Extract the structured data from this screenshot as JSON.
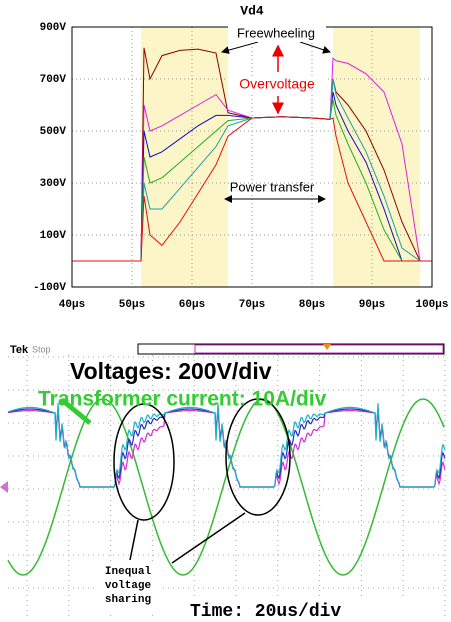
{
  "chart_data": {
    "type": "line",
    "title": "Vd4",
    "x": [
      40,
      51.5,
      52,
      53,
      55,
      58,
      61,
      64,
      66,
      70,
      75,
      80,
      83,
      83.5,
      84,
      86,
      89,
      92,
      95,
      98,
      100
    ],
    "series": [
      {
        "color": "#8b0000",
        "values": [
          0,
          0,
          820,
          700,
          790,
          810,
          815,
          800,
          570,
          550,
          555,
          550,
          545,
          700,
          650,
          600,
          500,
          350,
          150,
          0,
          0
        ]
      },
      {
        "color": "#e020e0",
        "values": [
          0,
          0,
          600,
          500,
          520,
          560,
          600,
          640,
          580,
          550,
          555,
          550,
          545,
          780,
          770,
          760,
          720,
          650,
          450,
          0,
          0
        ]
      },
      {
        "color": "#1010c0",
        "values": [
          0,
          0,
          500,
          400,
          420,
          470,
          520,
          560,
          560,
          550,
          555,
          550,
          545,
          650,
          600,
          500,
          380,
          200,
          0,
          0,
          0
        ]
      },
      {
        "color": "#22b022",
        "values": [
          0,
          0,
          400,
          300,
          320,
          380,
          440,
          500,
          540,
          550,
          555,
          550,
          545,
          620,
          560,
          450,
          300,
          120,
          0,
          0,
          0
        ]
      },
      {
        "color": "#20a0a0",
        "values": [
          0,
          0,
          300,
          200,
          200,
          280,
          360,
          440,
          520,
          550,
          555,
          550,
          545,
          700,
          640,
          550,
          420,
          250,
          50,
          0,
          0
        ]
      },
      {
        "color": "#e01010",
        "values": [
          0,
          0,
          250,
          100,
          60,
          150,
          260,
          370,
          480,
          550,
          555,
          550,
          545,
          550,
          480,
          300,
          150,
          0,
          0,
          0,
          0
        ]
      }
    ],
    "spans": [
      [
        51.5,
        66
      ],
      [
        83.5,
        98
      ]
    ],
    "span_color": "#fbf5c7",
    "xlim": [
      40,
      100
    ],
    "xticks": [
      {
        "value": 40,
        "label": "40µs"
      },
      {
        "value": 50,
        "label": "50µs"
      },
      {
        "value": 60,
        "label": "60µs"
      },
      {
        "value": 70,
        "label": "70µs"
      },
      {
        "value": 80,
        "label": "80µs"
      },
      {
        "value": 90,
        "label": "90µs"
      },
      {
        "value": 100,
        "label": "100µs"
      }
    ],
    "ylim": [
      -100,
      900
    ],
    "yticks": [
      {
        "value": -100,
        "label": "-100V"
      },
      {
        "value": 100,
        "label": "100V"
      },
      {
        "value": 300,
        "label": "300V"
      },
      {
        "value": 500,
        "label": "500V"
      },
      {
        "value": 700,
        "label": "700V"
      },
      {
        "value": 900,
        "label": "900V"
      }
    ],
    "grid": true,
    "annotations": [
      "Freewheeling",
      "Overvoltage",
      "Power transfer"
    ]
  },
  "scope": {
    "brand": "Tek",
    "status": "Stop",
    "voltage_scale": "Voltages: 200V/div",
    "current_scale": "Transformer current: 10A/div",
    "note": [
      "Inequal",
      "voltage",
      "sharing"
    ],
    "time_scale": "Time: 20us/div"
  }
}
